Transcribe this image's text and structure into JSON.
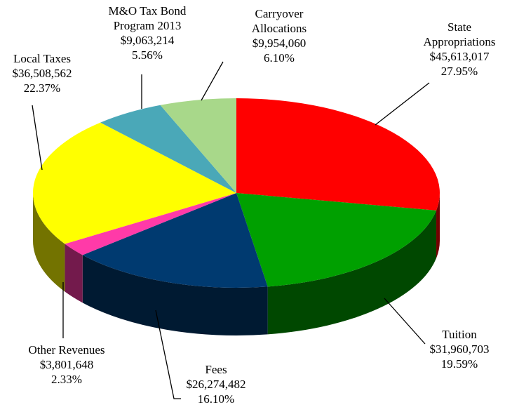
{
  "chart_data": {
    "type": "pie3d",
    "categories": [
      [
        "State",
        "Appropriations"
      ],
      [
        "Tuition"
      ],
      [
        "Fees"
      ],
      [
        "Other Revenues"
      ],
      [
        "Local Taxes"
      ],
      [
        "M&O Tax Bond",
        "Program 2013"
      ],
      [
        "Carryover",
        "Allocations"
      ]
    ],
    "values": [
      45613017,
      31960703,
      26274482,
      3801648,
      36508562,
      9063214,
      9954060
    ],
    "value_labels": [
      "$45,613,017",
      "$31,960,703",
      "$26,274,482",
      "$3,801,648",
      "$36,508,562",
      "$9,063,214",
      "$9,954,060"
    ],
    "percentages": [
      27.95,
      19.59,
      16.1,
      2.33,
      22.37,
      5.56,
      6.1
    ],
    "percentage_labels": [
      "27.95%",
      "19.59%",
      "16.10%",
      "2.33%",
      "22.37%",
      "5.56%",
      "6.10%"
    ],
    "colors": [
      "#ff0000",
      "#00a000",
      "#003a70",
      "#ff3aa8",
      "#ffff00",
      "#4aa8b8",
      "#a8d88a"
    ]
  }
}
